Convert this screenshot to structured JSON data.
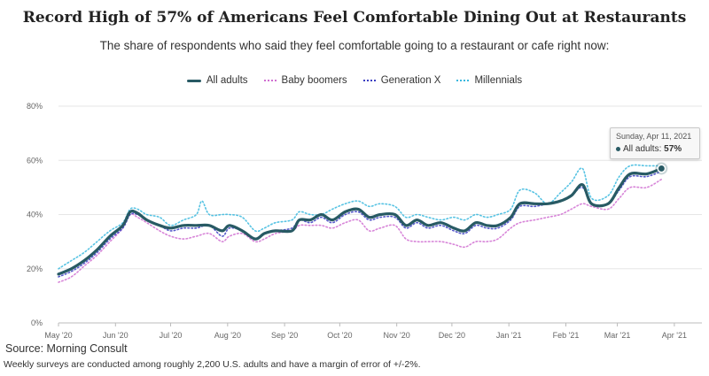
{
  "chart_data": {
    "type": "line",
    "title": "Record High of 57% of Americans Feel Comfortable Dining Out at Restaurants",
    "subtitle": "The share of respondents who said they feel comfortable going to a restaurant or cafe right now:",
    "ylim": [
      0,
      80
    ],
    "yticks": [
      "0%",
      "20%",
      "40%",
      "60%",
      "80%"
    ],
    "xtick_labels": [
      "May '20",
      "Jun '20",
      "Jul '20",
      "Aug '20",
      "Sep '20",
      "Oct '20",
      "Nov '20",
      "Dec '20",
      "Jan '21",
      "Feb '21",
      "Mar '21",
      "Apr '21"
    ],
    "x_range_days": [
      0,
      350
    ],
    "xtick_days": [
      0,
      31,
      61,
      92,
      123,
      153,
      184,
      214,
      245,
      276,
      304,
      335
    ],
    "series": [
      {
        "name": "All adults",
        "color": "#285a64",
        "style": "solid",
        "points": [
          [
            0,
            18
          ],
          [
            7,
            20
          ],
          [
            14,
            23
          ],
          [
            21,
            27
          ],
          [
            28,
            32
          ],
          [
            35,
            36
          ],
          [
            39,
            41
          ],
          [
            43,
            40.5
          ],
          [
            48,
            38
          ],
          [
            55,
            36
          ],
          [
            61,
            35
          ],
          [
            68,
            36
          ],
          [
            75,
            36
          ],
          [
            82,
            36
          ],
          [
            89,
            34
          ],
          [
            93,
            36
          ],
          [
            100,
            34
          ],
          [
            107,
            31
          ],
          [
            112,
            33
          ],
          [
            118,
            34
          ],
          [
            127,
            34
          ],
          [
            131,
            38
          ],
          [
            137,
            38
          ],
          [
            143,
            40
          ],
          [
            149,
            38
          ],
          [
            156,
            41
          ],
          [
            163,
            42
          ],
          [
            169,
            39
          ],
          [
            175,
            40
          ],
          [
            183,
            40
          ],
          [
            189,
            36
          ],
          [
            195,
            38
          ],
          [
            201,
            36
          ],
          [
            208,
            37
          ],
          [
            215,
            35
          ],
          [
            221,
            34
          ],
          [
            227,
            37
          ],
          [
            233,
            36
          ],
          [
            239,
            36
          ],
          [
            246,
            39
          ],
          [
            251,
            44
          ],
          [
            259,
            44
          ],
          [
            266,
            44
          ],
          [
            273,
            45
          ],
          [
            279,
            47
          ],
          [
            285,
            51
          ],
          [
            290,
            44
          ],
          [
            299,
            44
          ],
          [
            305,
            50
          ],
          [
            311,
            55
          ],
          [
            320,
            55
          ],
          [
            328,
            57
          ]
        ]
      },
      {
        "name": "Baby boomers",
        "color": "#d06fd1",
        "style": "dotted",
        "points": [
          [
            0,
            15
          ],
          [
            7,
            17
          ],
          [
            14,
            21
          ],
          [
            21,
            25
          ],
          [
            28,
            30
          ],
          [
            35,
            35
          ],
          [
            39,
            40
          ],
          [
            43,
            39
          ],
          [
            48,
            37
          ],
          [
            55,
            34
          ],
          [
            61,
            32
          ],
          [
            68,
            31
          ],
          [
            75,
            32
          ],
          [
            82,
            33
          ],
          [
            89,
            30
          ],
          [
            93,
            32
          ],
          [
            100,
            33
          ],
          [
            107,
            30
          ],
          [
            112,
            31
          ],
          [
            118,
            33
          ],
          [
            127,
            34
          ],
          [
            131,
            36
          ],
          [
            137,
            36
          ],
          [
            143,
            36
          ],
          [
            149,
            35
          ],
          [
            156,
            37
          ],
          [
            163,
            38
          ],
          [
            169,
            34
          ],
          [
            175,
            35
          ],
          [
            183,
            36
          ],
          [
            189,
            31
          ],
          [
            195,
            30
          ],
          [
            201,
            30
          ],
          [
            208,
            30
          ],
          [
            215,
            29
          ],
          [
            221,
            28
          ],
          [
            227,
            30
          ],
          [
            233,
            30
          ],
          [
            239,
            31
          ],
          [
            246,
            35
          ],
          [
            251,
            37
          ],
          [
            259,
            38
          ],
          [
            266,
            39
          ],
          [
            273,
            40
          ],
          [
            279,
            42
          ],
          [
            285,
            44
          ],
          [
            290,
            43
          ],
          [
            299,
            42
          ],
          [
            305,
            46
          ],
          [
            311,
            50
          ],
          [
            320,
            50
          ],
          [
            328,
            53
          ]
        ]
      },
      {
        "name": "Generation X",
        "color": "#3b3ec2",
        "style": "dotted",
        "points": [
          [
            0,
            17
          ],
          [
            7,
            19
          ],
          [
            14,
            22
          ],
          [
            21,
            26
          ],
          [
            28,
            31
          ],
          [
            35,
            35
          ],
          [
            39,
            40
          ],
          [
            43,
            40
          ],
          [
            48,
            38
          ],
          [
            55,
            36
          ],
          [
            61,
            34
          ],
          [
            68,
            35
          ],
          [
            75,
            35
          ],
          [
            82,
            36
          ],
          [
            89,
            32
          ],
          [
            93,
            35
          ],
          [
            100,
            34
          ],
          [
            107,
            31
          ],
          [
            112,
            33
          ],
          [
            118,
            34
          ],
          [
            127,
            35
          ],
          [
            131,
            38
          ],
          [
            137,
            37
          ],
          [
            143,
            39
          ],
          [
            149,
            37
          ],
          [
            156,
            40
          ],
          [
            163,
            41
          ],
          [
            169,
            38
          ],
          [
            175,
            39
          ],
          [
            183,
            39
          ],
          [
            189,
            35
          ],
          [
            195,
            37
          ],
          [
            201,
            35
          ],
          [
            208,
            36
          ],
          [
            215,
            34
          ],
          [
            221,
            33
          ],
          [
            227,
            36
          ],
          [
            233,
            35
          ],
          [
            239,
            35
          ],
          [
            246,
            38
          ],
          [
            251,
            43
          ],
          [
            259,
            43
          ],
          [
            266,
            44
          ],
          [
            273,
            45
          ],
          [
            279,
            47
          ],
          [
            285,
            50
          ],
          [
            290,
            44
          ],
          [
            299,
            44
          ],
          [
            305,
            49
          ],
          [
            311,
            54
          ],
          [
            320,
            54
          ],
          [
            328,
            56
          ]
        ]
      },
      {
        "name": "Millennials",
        "color": "#3ab8de",
        "style": "dotted",
        "points": [
          [
            0,
            20
          ],
          [
            7,
            23
          ],
          [
            14,
            26
          ],
          [
            21,
            30
          ],
          [
            28,
            34
          ],
          [
            35,
            37
          ],
          [
            39,
            42
          ],
          [
            43,
            42
          ],
          [
            48,
            40
          ],
          [
            55,
            39
          ],
          [
            61,
            36
          ],
          [
            68,
            38
          ],
          [
            75,
            40
          ],
          [
            78,
            45
          ],
          [
            82,
            40
          ],
          [
            89,
            40
          ],
          [
            93,
            40
          ],
          [
            100,
            39
          ],
          [
            107,
            34
          ],
          [
            112,
            35
          ],
          [
            118,
            37
          ],
          [
            127,
            38
          ],
          [
            131,
            41
          ],
          [
            137,
            40
          ],
          [
            143,
            40
          ],
          [
            149,
            42
          ],
          [
            156,
            44
          ],
          [
            163,
            45
          ],
          [
            169,
            43
          ],
          [
            175,
            44
          ],
          [
            183,
            43
          ],
          [
            189,
            39
          ],
          [
            195,
            40
          ],
          [
            201,
            39
          ],
          [
            208,
            38
          ],
          [
            215,
            39
          ],
          [
            221,
            38
          ],
          [
            227,
            40
          ],
          [
            233,
            39
          ],
          [
            239,
            40
          ],
          [
            246,
            42
          ],
          [
            251,
            49
          ],
          [
            259,
            48
          ],
          [
            266,
            44
          ],
          [
            273,
            48
          ],
          [
            279,
            52
          ],
          [
            285,
            57
          ],
          [
            290,
            46
          ],
          [
            299,
            47
          ],
          [
            305,
            54
          ],
          [
            311,
            58
          ],
          [
            320,
            58
          ],
          [
            328,
            58
          ]
        ]
      }
    ],
    "highlight": {
      "series": "All adults",
      "day": 328,
      "value": 57
    }
  },
  "tooltip": {
    "date": "Sunday, Apr 11, 2021",
    "series_label": "All adults:",
    "value_label": "57%"
  },
  "source": "Source:  Morning Consult",
  "note": "Weekly surveys are conducted among roughly 2,200 U.S. adults and have a margin of error of +/-2%."
}
